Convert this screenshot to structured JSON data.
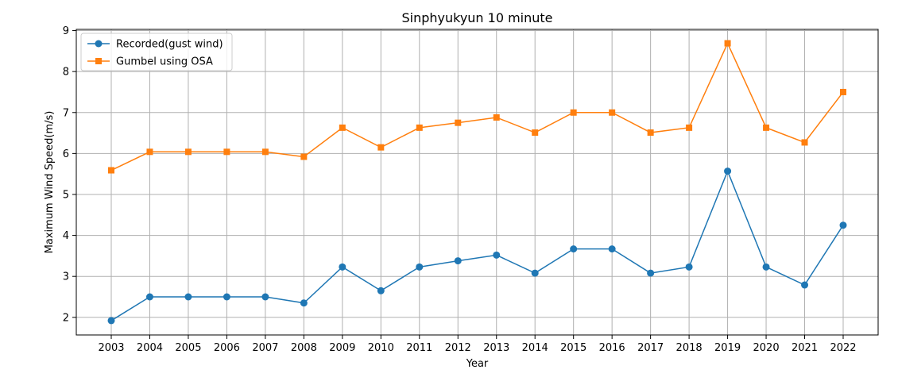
{
  "chart_data": {
    "type": "line",
    "title": "Sinphyukyun 10 minute",
    "xlabel": "Year",
    "ylabel": "Maximum Wind Speed(m/s)",
    "categories": [
      "2003",
      "2004",
      "2005",
      "2006",
      "2007",
      "2008",
      "2009",
      "2010",
      "2011",
      "2012",
      "2013",
      "2014",
      "2015",
      "2016",
      "2017",
      "2018",
      "2019",
      "2020",
      "2021",
      "2022"
    ],
    "ylim": [
      1.57,
      9.03
    ],
    "yticks": [
      2,
      3,
      4,
      5,
      6,
      7,
      8,
      9
    ],
    "grid": true,
    "legend_position": "top-left",
    "series": [
      {
        "name": "Recorded(gust wind)",
        "color": "#1f77b4",
        "marker": "circle",
        "values": [
          1.92,
          2.5,
          2.5,
          2.5,
          2.5,
          2.35,
          3.23,
          2.65,
          3.23,
          3.38,
          3.52,
          3.08,
          3.67,
          3.67,
          3.08,
          3.23,
          5.57,
          3.23,
          2.79,
          4.25
        ]
      },
      {
        "name": "Gumbel using OSA",
        "color": "#ff7f0e",
        "marker": "square",
        "values": [
          5.59,
          6.04,
          6.04,
          6.04,
          6.04,
          5.92,
          6.63,
          6.15,
          6.63,
          6.75,
          6.88,
          6.51,
          7.0,
          7.0,
          6.51,
          6.63,
          8.69,
          6.63,
          6.27,
          7.5
        ]
      }
    ]
  }
}
